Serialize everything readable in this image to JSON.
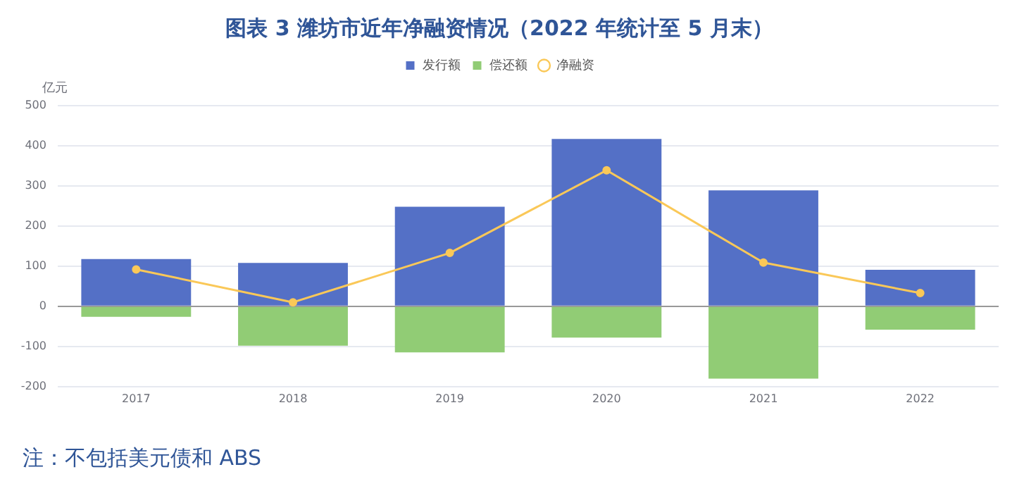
{
  "chart_data": {
    "type": "bar",
    "title": "图表 3 潍坊市近年净融资情况（2022 年统计至 5 月末）",
    "ylabel": "亿元",
    "categories": [
      "2017",
      "2018",
      "2019",
      "2020",
      "2021",
      "2022"
    ],
    "series": [
      {
        "name": "发行额",
        "color": "#5470c6",
        "values": [
          118,
          108,
          248,
          417,
          289,
          91
        ]
      },
      {
        "name": "偿还额",
        "color": "#91cc75",
        "values": [
          -26,
          -98,
          -115,
          -78,
          -180,
          -58
        ]
      },
      {
        "name": "净融资",
        "type": "line",
        "color": "#fac858",
        "values": [
          92,
          10,
          133,
          339,
          109,
          33
        ]
      }
    ],
    "stacked": true,
    "ylim": [
      -200,
      500
    ],
    "yticks": [
      -200,
      -100,
      0,
      100,
      200,
      300,
      400,
      500
    ],
    "grid": "y",
    "legend": "top",
    "marker": "circle",
    "annotations": [
      "注：不包括美元债和 ABS"
    ]
  }
}
